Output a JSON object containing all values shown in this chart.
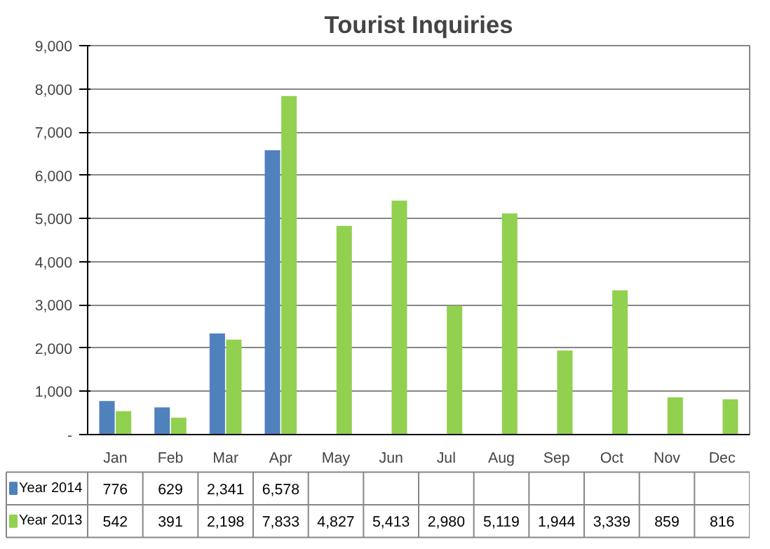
{
  "chart_data": {
    "type": "bar",
    "title": "Tourist Inquiries",
    "categories": [
      "Jan",
      "Feb",
      "Mar",
      "Apr",
      "May",
      "Jun",
      "Jul",
      "Aug",
      "Sep",
      "Oct",
      "Nov",
      "Dec"
    ],
    "series": [
      {
        "name": "Year 2014",
        "color": "#4f81bd",
        "values": [
          776,
          629,
          2341,
          6578,
          null,
          null,
          null,
          null,
          null,
          null,
          null,
          null
        ],
        "value_labels": [
          "776",
          "629",
          "2,341",
          "6,578",
          null,
          null,
          null,
          null,
          null,
          null,
          null,
          null
        ]
      },
      {
        "name": "Year 2013",
        "color": "#92d050",
        "values": [
          542,
          391,
          2198,
          7833,
          4827,
          5413,
          2980,
          5119,
          1944,
          3339,
          859,
          816
        ],
        "value_labels": [
          "542",
          "391",
          "2,198",
          "7,833",
          "4,827",
          "5,413",
          "2,980",
          "5,119",
          "1,944",
          "3,339",
          "859",
          "816"
        ]
      }
    ],
    "ylim": [
      0,
      9000
    ],
    "yticks": [
      {
        "value": 0,
        "label": "-"
      },
      {
        "value": 1000,
        "label": "1,000"
      },
      {
        "value": 2000,
        "label": "2,000"
      },
      {
        "value": 3000,
        "label": "3,000"
      },
      {
        "value": 4000,
        "label": "4,000"
      },
      {
        "value": 5000,
        "label": "5,000"
      },
      {
        "value": 6000,
        "label": "6,000"
      },
      {
        "value": 7000,
        "label": "7,000"
      },
      {
        "value": 8000,
        "label": "8,000"
      },
      {
        "value": 9000,
        "label": "9,000"
      }
    ],
    "grid": "y",
    "legend": "bottom"
  }
}
